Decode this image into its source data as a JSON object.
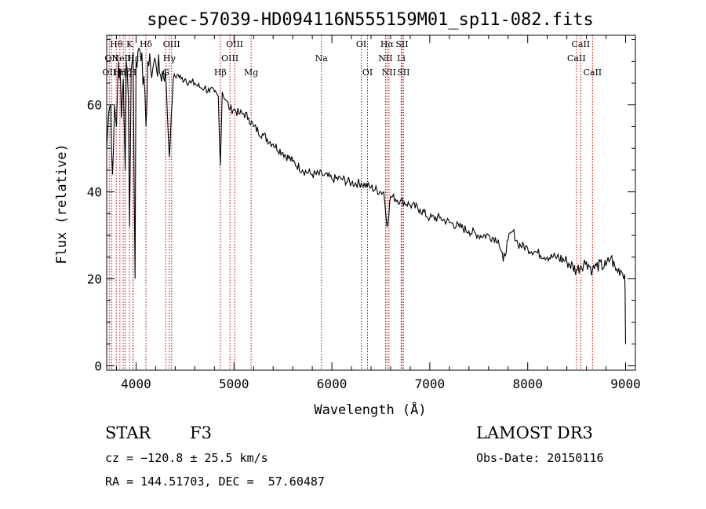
{
  "chart_data": {
    "type": "line",
    "title": "spec-57039-HD094116N555159M01_sp11-082.fits",
    "xlabel": "Wavelength (Å)",
    "ylabel": "Flux (relative)",
    "xlim": [
      3700,
      9100
    ],
    "ylim": [
      -1,
      76
    ],
    "xticks": [
      4000,
      5000,
      6000,
      7000,
      8000,
      9000
    ],
    "yticks": [
      0,
      20,
      40,
      60
    ],
    "series": [
      {
        "name": "spectrum",
        "x": [
          3700,
          3720,
          3740,
          3760,
          3780,
          3800,
          3820,
          3835,
          3850,
          3870,
          3889,
          3900,
          3920,
          3933,
          3950,
          3970,
          3990,
          4000,
          4030,
          4060,
          4101,
          4120,
          4150,
          4200,
          4250,
          4300,
          4340,
          4380,
          4420,
          4460,
          4500,
          4560,
          4600,
          4650,
          4700,
          4750,
          4800,
          4840,
          4861,
          4880,
          4920,
          4960,
          5000,
          5050,
          5100,
          5150,
          5200,
          5300,
          5400,
          5500,
          5600,
          5700,
          5800,
          5900,
          6000,
          6100,
          6200,
          6300,
          6400,
          6500,
          6530,
          6563,
          6600,
          6700,
          6800,
          6900,
          7000,
          7100,
          7200,
          7300,
          7400,
          7500,
          7600,
          7700,
          7750,
          7800,
          7850,
          7900,
          8000,
          8100,
          8200,
          8300,
          8400,
          8498,
          8542,
          8600,
          8662,
          8700,
          8800,
          8850,
          8900,
          8950,
          8990,
          8995,
          9000
        ],
        "y": [
          50,
          58,
          60,
          44,
          60,
          55,
          70,
          68,
          57,
          66,
          45,
          70,
          62,
          32,
          68,
          72,
          20,
          70,
          73,
          72,
          55,
          70,
          68,
          70,
          67,
          68,
          48,
          66,
          67,
          66,
          66,
          65,
          65,
          64,
          64,
          63,
          63,
          62,
          46,
          63,
          61,
          59,
          59,
          58,
          58,
          57,
          55,
          53,
          51,
          49,
          47,
          45,
          44,
          44,
          43,
          43,
          42,
          42,
          41,
          40,
          40,
          32,
          39,
          38,
          37,
          36,
          34,
          34,
          33,
          32,
          31,
          30,
          30,
          29,
          24,
          29,
          31,
          28,
          27,
          26,
          25,
          25,
          24,
          22,
          23,
          24,
          22,
          23,
          23,
          25,
          22,
          22,
          21,
          17,
          5
        ]
      }
    ],
    "lines": [
      {
        "x": 3726,
        "label": "OII",
        "row": 3
      },
      {
        "x": 3750,
        "label": "OII",
        "row": 2
      },
      {
        "x": 3798,
        "label": "Hθ",
        "row": 1
      },
      {
        "x": 3835,
        "label": "Hη",
        "row": 3
      },
      {
        "x": 3869,
        "label": "NeIII",
        "row": 2
      },
      {
        "x": 3889,
        "label": "Hζ",
        "row": 3
      },
      {
        "x": 3933,
        "label": "K",
        "row": 1
      },
      {
        "x": 3968,
        "label": "H",
        "row": 3
      },
      {
        "x": 3970,
        "label": "Hε",
        "row": 2
      },
      {
        "x": 4101,
        "label": "Hδ",
        "row": 1
      },
      {
        "x": 4304,
        "label": "G",
        "row": 3
      },
      {
        "x": 4340,
        "label": "Hγ",
        "row": 2
      },
      {
        "x": 4363,
        "label": "OIII",
        "row": 1
      },
      {
        "x": 4861,
        "label": "Hβ",
        "row": 3
      },
      {
        "x": 4959,
        "label": "OIII",
        "row": 2
      },
      {
        "x": 5007,
        "label": "OIII",
        "row": 1
      },
      {
        "x": 5175,
        "label": "Mg",
        "row": 3
      },
      {
        "x": 5893,
        "label": "Na",
        "row": 2
      },
      {
        "x": 6300,
        "label": "OI",
        "row": 1
      },
      {
        "x": 6364,
        "label": "OI",
        "row": 3
      },
      {
        "x": 6548,
        "label": "NII",
        "row": 2
      },
      {
        "x": 6563,
        "label": "Hα",
        "row": 1
      },
      {
        "x": 6583,
        "label": "NII",
        "row": 3
      },
      {
        "x": 6708,
        "label": "Li",
        "row": 2
      },
      {
        "x": 6716,
        "label": "SII",
        "row": 1
      },
      {
        "x": 6731,
        "label": "SII",
        "row": 3
      },
      {
        "x": 8498,
        "label": "CaII",
        "row": 2
      },
      {
        "x": 8542,
        "label": "CaII",
        "row": 1
      },
      {
        "x": 8662,
        "label": "CaII",
        "row": 3
      }
    ]
  },
  "info": {
    "object_class": "STAR",
    "subclass": "F3",
    "survey": "LAMOST DR3",
    "cz": "cz = −120.8 ± 25.5 km/s",
    "obs_date": "Obs-Date: 20150116",
    "coords": "RA = 144.51703, DEC =  57.60487"
  },
  "colors": {
    "spectrum": "#000000",
    "line_marker": "#c00000",
    "axes": "#000000",
    "background": "#ffffff"
  }
}
